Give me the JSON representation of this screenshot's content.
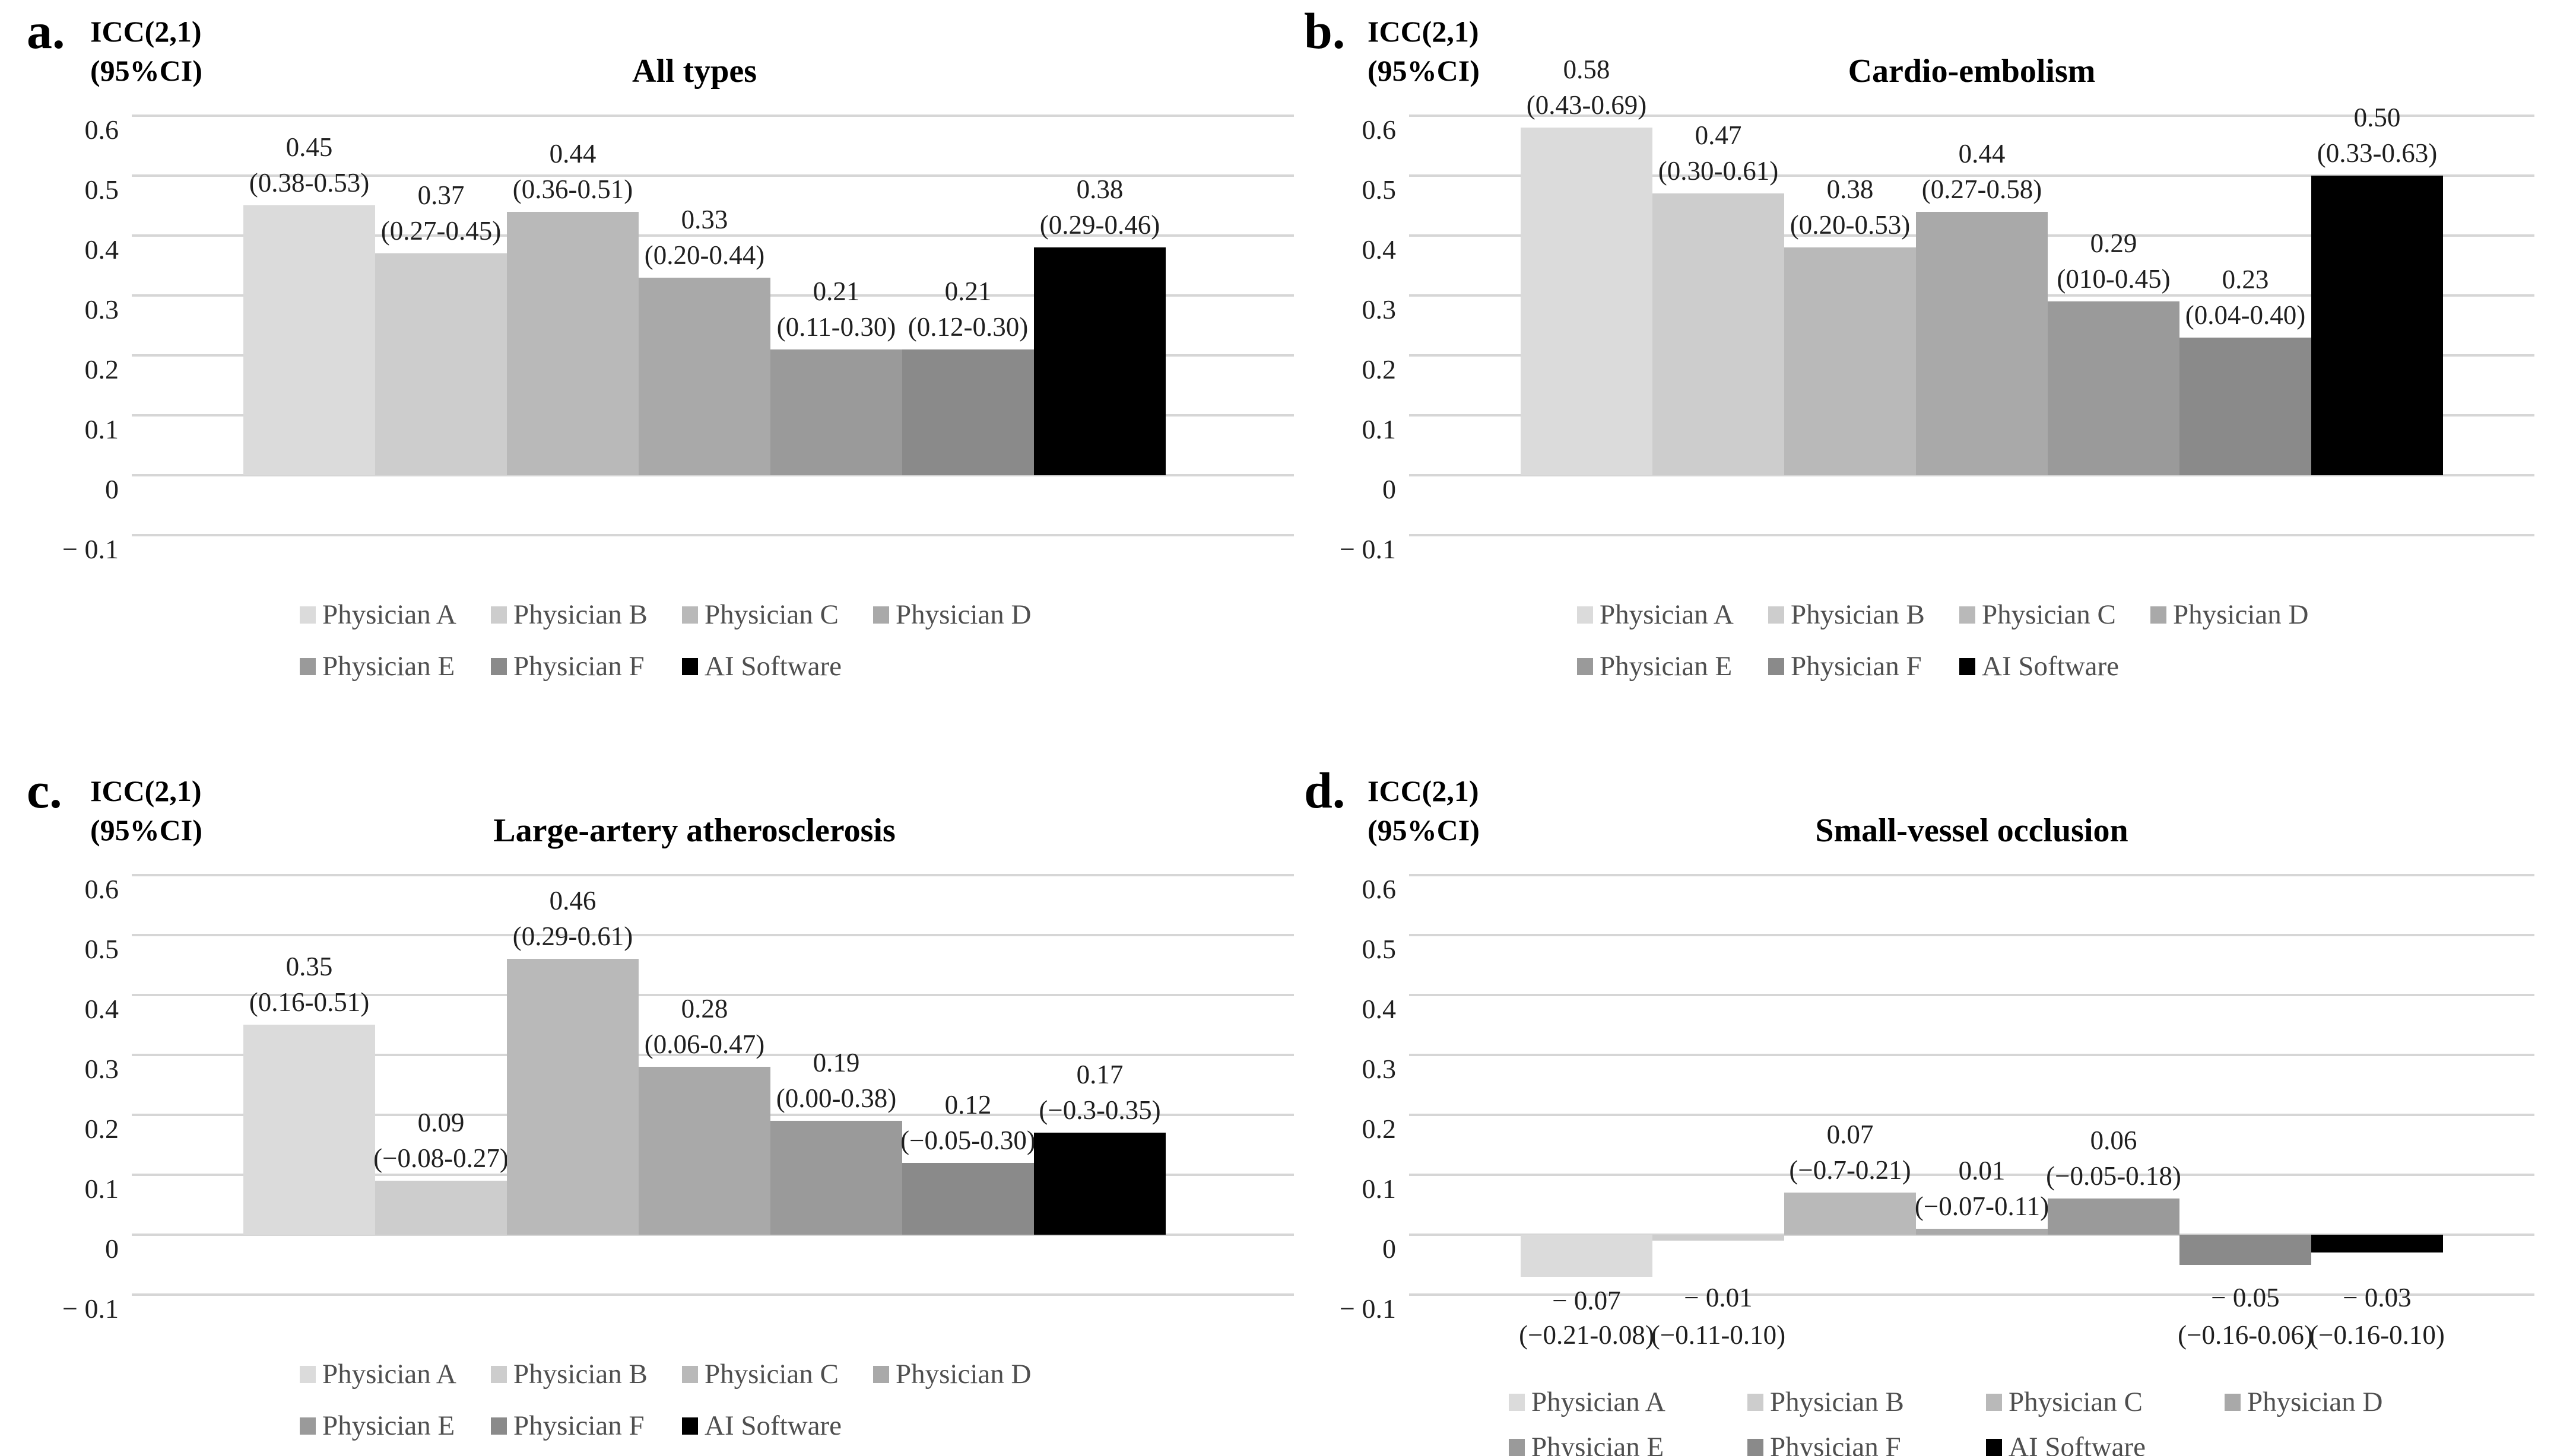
{
  "figure": {
    "background": "#ffffff",
    "colors": {
      "series": [
        "#dbdbdb",
        "#cdcdcd",
        "#b9b9b9",
        "#a9a9a9",
        "#9a9a9a",
        "#8a8a8a",
        "#000000"
      ],
      "gridline": "#d6d6d6",
      "legend_text": "#4f4f4f",
      "label_text": "#1f1f1f"
    },
    "panels": [
      {
        "letter": "a.",
        "y_axis_line1": "ICC(2,1)",
        "y_axis_line2": "(95%CI)",
        "title": "All types",
        "y_ticks": [
          "0.6",
          "0.5",
          "0.4",
          "0.3",
          "0.2",
          "0.1",
          "0",
          "− 0.1"
        ],
        "series": [
          {
            "name": "Physician A",
            "label": "0.45",
            "ci": "(0.38-0.53)"
          },
          {
            "name": "Physician B",
            "label": "0.37",
            "ci": "(0.27-0.45)"
          },
          {
            "name": "Physician C",
            "label": "0.44",
            "ci": "(0.36-0.51)"
          },
          {
            "name": "Physician D",
            "label": "0.33",
            "ci": "(0.20-0.44)"
          },
          {
            "name": "Physician E",
            "label": "0.21",
            "ci": "(0.11-0.30)"
          },
          {
            "name": "Physician F",
            "label": "0.21",
            "ci": "(0.12-0.30)"
          },
          {
            "name": "AI Software",
            "label": "0.38",
            "ci": "(0.29-0.46)"
          }
        ]
      },
      {
        "letter": "b.",
        "y_axis_line1": "ICC(2,1)",
        "y_axis_line2": "(95%CI)",
        "title": "Cardio-embolism",
        "y_ticks": [
          "0.6",
          "0.5",
          "0.4",
          "0.3",
          "0.2",
          "0.1",
          "0",
          "− 0.1"
        ],
        "series": [
          {
            "name": "Physician A",
            "label": "0.58",
            "ci": "(0.43-0.69)"
          },
          {
            "name": "Physician B",
            "label": "0.47",
            "ci": "(0.30-0.61)"
          },
          {
            "name": "Physician C",
            "label": "0.38",
            "ci": "(0.20-0.53)"
          },
          {
            "name": "Physician D",
            "label": "0.44",
            "ci": "(0.27-0.58)"
          },
          {
            "name": "Physician E",
            "label": "0.29",
            "ci": "(010-0.45)"
          },
          {
            "name": "Physician F",
            "label": "0.23",
            "ci": "(0.04-0.40)"
          },
          {
            "name": "AI Software",
            "label": "0.50",
            "ci": "(0.33-0.63)"
          }
        ]
      },
      {
        "letter": "c.",
        "y_axis_line1": "ICC(2,1)",
        "y_axis_line2": "(95%CI)",
        "title": "Large-artery atherosclerosis",
        "y_ticks": [
          "0.6",
          "0.5",
          "0.4",
          "0.3",
          "0.2",
          "0.1",
          "0",
          "− 0.1"
        ],
        "series": [
          {
            "name": "Physician A",
            "label": "0.35",
            "ci": "(0.16-0.51)"
          },
          {
            "name": "Physician B",
            "label": "0.09",
            "ci": "(−0.08-0.27)"
          },
          {
            "name": "Physician C",
            "label": "0.46",
            "ci": "(0.29-0.61)"
          },
          {
            "name": "Physician D",
            "label": "0.28",
            "ci": "(0.06-0.47)"
          },
          {
            "name": "Physician E",
            "label": "0.19",
            "ci": "(0.00-0.38)"
          },
          {
            "name": "Physician F",
            "label": "0.12",
            "ci": "(−0.05-0.30)"
          },
          {
            "name": "AI Software",
            "label": "0.17",
            "ci": "(−0.3-0.35)"
          }
        ]
      },
      {
        "letter": "d.",
        "y_axis_line1": "ICC(2,1)",
        "y_axis_line2": "(95%CI)",
        "title": "Small-vessel occlusion",
        "y_ticks": [
          "0.6",
          "0.5",
          "0.4",
          "0.3",
          "0.2",
          "0.1",
          "0",
          "− 0.1"
        ],
        "series": [
          {
            "name": "Physician A",
            "label": "− 0.07",
            "ci": "(−0.21-0.08)"
          },
          {
            "name": "Physician B",
            "label": "− 0.01",
            "ci": "(−0.11-0.10)"
          },
          {
            "name": "Physician C",
            "label": "0.07",
            "ci": "(−0.7-0.21)"
          },
          {
            "name": "Physician D",
            "label": "0.01",
            "ci": "(−0.07-0.11)"
          },
          {
            "name": "Physician E",
            "label": "0.06",
            "ci": "(−0.05-0.18)"
          },
          {
            "name": "Physician F",
            "label": "− 0.05",
            "ci": "(−0.16-0.06)"
          },
          {
            "name": "AI Software",
            "label": "− 0.03",
            "ci": "(−0.16-0.10)"
          }
        ]
      }
    ]
  },
  "chart_data": [
    {
      "type": "bar",
      "title": "All types",
      "ylabel": "ICC(2,1) (95%CI)",
      "ylim": [
        -0.1,
        0.6
      ],
      "grid": true,
      "legend_position": "bottom",
      "categories": [
        "Physician A",
        "Physician B",
        "Physician C",
        "Physician D",
        "Physician E",
        "Physician F",
        "AI Software"
      ],
      "values": [
        0.45,
        0.37,
        0.44,
        0.33,
        0.21,
        0.21,
        0.38
      ],
      "ci_labels": [
        "(0.38-0.53)",
        "(0.27-0.45)",
        "(0.36-0.51)",
        "(0.20-0.44)",
        "(0.11-0.30)",
        "(0.12-0.30)",
        "(0.29-0.46)"
      ]
    },
    {
      "type": "bar",
      "title": "Cardio-embolism",
      "ylabel": "ICC(2,1) (95%CI)",
      "ylim": [
        -0.1,
        0.6
      ],
      "grid": true,
      "legend_position": "bottom",
      "categories": [
        "Physician A",
        "Physician B",
        "Physician C",
        "Physician D",
        "Physician E",
        "Physician F",
        "AI Software"
      ],
      "values": [
        0.58,
        0.47,
        0.38,
        0.44,
        0.29,
        0.23,
        0.5
      ],
      "ci_labels": [
        "(0.43-0.69)",
        "(0.30-0.61)",
        "(0.20-0.53)",
        "(0.27-0.58)",
        "(010-0.45)",
        "(0.04-0.40)",
        "(0.33-0.63)"
      ]
    },
    {
      "type": "bar",
      "title": "Large-artery atherosclerosis",
      "ylabel": "ICC(2,1) (95%CI)",
      "ylim": [
        -0.1,
        0.6
      ],
      "grid": true,
      "legend_position": "bottom",
      "categories": [
        "Physician A",
        "Physician B",
        "Physician C",
        "Physician D",
        "Physician E",
        "Physician F",
        "AI Software"
      ],
      "values": [
        0.35,
        0.09,
        0.46,
        0.28,
        0.19,
        0.12,
        0.17
      ],
      "ci_labels": [
        "(0.16-0.51)",
        "(−0.08-0.27)",
        "(0.29-0.61)",
        "(0.06-0.47)",
        "(0.00-0.38)",
        "(−0.05-0.30)",
        "(−0.3-0.35)"
      ]
    },
    {
      "type": "bar",
      "title": "Small-vessel occlusion",
      "ylabel": "ICC(2,1) (95%CI)",
      "ylim": [
        -0.1,
        0.6
      ],
      "grid": true,
      "legend_position": "bottom",
      "categories": [
        "Physician A",
        "Physician B",
        "Physician C",
        "Physician D",
        "Physician E",
        "Physician F",
        "AI Software"
      ],
      "values": [
        -0.07,
        -0.01,
        0.07,
        0.01,
        0.06,
        -0.05,
        -0.03
      ],
      "ci_labels": [
        "(−0.21-0.08)",
        "(−0.11-0.10)",
        "(−0.7-0.21)",
        "(−0.07-0.11)",
        "(−0.05-0.18)",
        "(−0.16-0.06)",
        "(−0.16-0.10)"
      ]
    }
  ]
}
